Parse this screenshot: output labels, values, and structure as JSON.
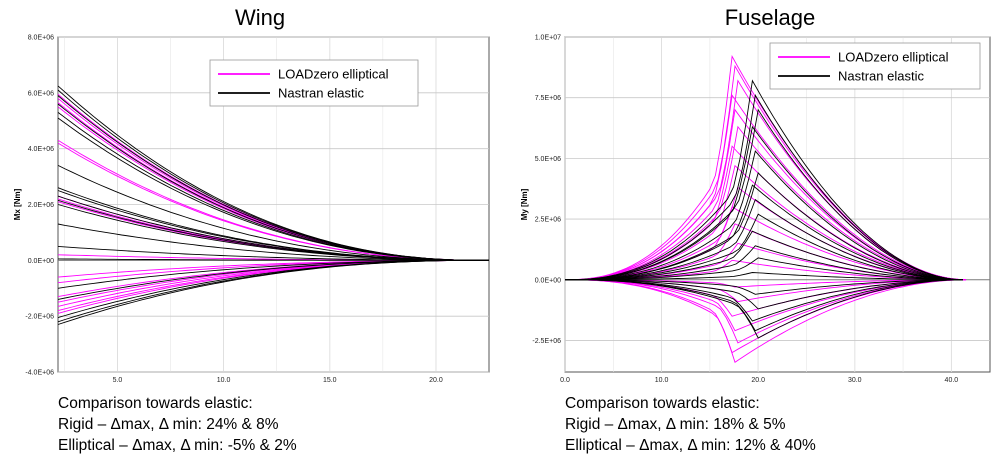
{
  "chart_data": [
    {
      "type": "line",
      "title": "Wing",
      "xlabel": "",
      "ylabel": "Mx [Nm]",
      "xlim": [
        2.2,
        22.5
      ],
      "ylim": [
        -4000000,
        8000000
      ],
      "xticks": [
        5.0,
        10.0,
        15.0,
        20.0
      ],
      "xtick_labels": [
        "5.0",
        "10.0",
        "15.0",
        "20.0"
      ],
      "yticks": [
        -4000000,
        -2000000,
        0,
        2000000,
        4000000,
        6000000,
        8000000
      ],
      "ytick_labels": [
        "-4.0E+06",
        "-2.0E+06",
        "0.0E+00",
        "2.0E+06",
        "4.0E+06",
        "6.0E+06",
        "8.0E+06"
      ],
      "grid": true,
      "legend": {
        "position": "top-right",
        "entries": [
          {
            "label": "LOADzero elliptical",
            "color": "#ff00ff"
          },
          {
            "label": "Nastran elastic",
            "color": "#000000"
          }
        ]
      },
      "series": [
        {
          "name": "LOADzero elliptical",
          "color": "#ff00ff",
          "endpoint_x": 22.2,
          "root_values": [
            5950000,
            5800000,
            5650000,
            5500000,
            4300000,
            4200000,
            2300000,
            2200000,
            2100000,
            200000,
            -600000,
            -800000,
            -1300000,
            -1500000,
            -1650000,
            -1800000,
            -1900000
          ]
        },
        {
          "name": "Nastran elastic",
          "color": "#000000",
          "endpoint_x": 22.2,
          "root_values": [
            6250000,
            6100000,
            5900000,
            5600000,
            5300000,
            5100000,
            3400000,
            2600000,
            2500000,
            2300000,
            2150000,
            2000000,
            1300000,
            500000,
            50000,
            -1000000,
            -1400000,
            -2050000,
            -2200000,
            -2300000
          ]
        }
      ]
    },
    {
      "type": "line",
      "title": "Fuselage",
      "xlabel": "",
      "ylabel": "My [Nm]",
      "xlim": [
        0.0,
        44.0
      ],
      "ylim": [
        -3800000,
        10000000
      ],
      "xticks": [
        0.0,
        10.0,
        20.0,
        30.0,
        40.0
      ],
      "xtick_labels": [
        "0.0",
        "10.0",
        "20.0",
        "30.0",
        "40.0"
      ],
      "yticks": [
        -2500000,
        0,
        2500000,
        5000000,
        7500000,
        10000000
      ],
      "ytick_labels": [
        "-2.5E+06",
        "0.0E+00",
        "2.5E+06",
        "5.0E+06",
        "7.5E+06",
        "1.0E+07"
      ],
      "grid": true,
      "legend": {
        "position": "top-right",
        "entries": [
          {
            "label": "LOADzero elliptical",
            "color": "#ff00ff"
          },
          {
            "label": "Nastran elastic",
            "color": "#000000"
          }
        ]
      },
      "series": [
        {
          "name": "LOADzero elliptical",
          "color": "#ff00ff",
          "peak_x": 17.3,
          "end_x": 41.5,
          "peak_values": [
            9200000,
            8800000,
            8200000,
            7600000,
            7000000,
            6300000,
            5500000,
            4700000,
            3800000,
            3000000,
            2300000,
            1500000,
            800000,
            -300000,
            -900000,
            -1500000,
            -2100000,
            -2600000,
            -3000000,
            -3400000
          ]
        },
        {
          "name": "Nastran elastic",
          "color": "#000000",
          "peak_x": 19.4,
          "end_x": 41.2,
          "peak_values": [
            8200000,
            7600000,
            7000000,
            6300000,
            5300000,
            4400000,
            3900000,
            3300000,
            2700000,
            2000000,
            1400000,
            900000,
            300000,
            -600000,
            -1200000,
            -1700000,
            -2100000,
            -2400000
          ]
        }
      ]
    }
  ],
  "notes": {
    "wing": {
      "heading": "Comparison towards elastic:",
      "rigid": "Rigid – Δmax, Δ min: 24% & 8%",
      "elliptical": "Elliptical – Δmax, Δ min: -5% & 2%"
    },
    "fuselage": {
      "heading": "Comparison towards elastic:",
      "rigid": "Rigid – Δmax, Δ min: 18% & 5%",
      "elliptical": "Elliptical – Δmax, Δ min: 12% & 40%"
    }
  }
}
